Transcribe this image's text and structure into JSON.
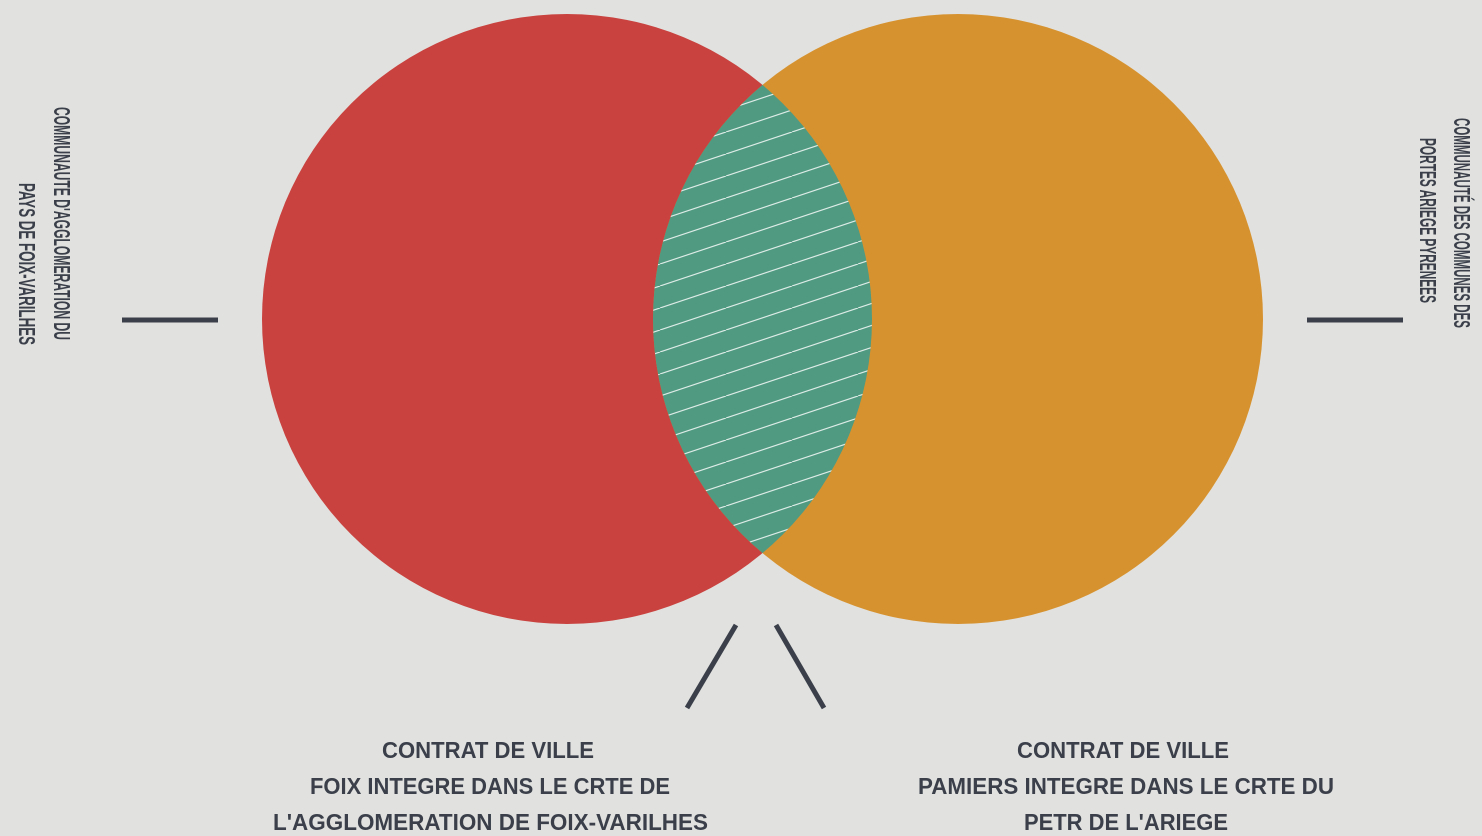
{
  "left_label": {
    "lines": [
      "COMMUNAUTE D'AGGLOMERATION DU",
      "PAYS DE FOIX-VARILHES"
    ]
  },
  "right_label": {
    "lines": [
      "COMMUNAUTÉ DES COMMUNES DES",
      "PORTES ARIEGE PYRENEES"
    ]
  },
  "bottom_labels": [
    {
      "lines": [
        "CONTRAT DE VILLE",
        "FOIX INTEGRE DANS LE CRTE DE",
        "L'AGGLOMERATION DE FOIX-VARILHES"
      ]
    },
    {
      "lines": [
        "CONTRAT DE VILLE",
        "PAMIERS INTEGRE DANS LE CRTE DU",
        "PETR DE L'ARIEGE"
      ]
    }
  ]
}
